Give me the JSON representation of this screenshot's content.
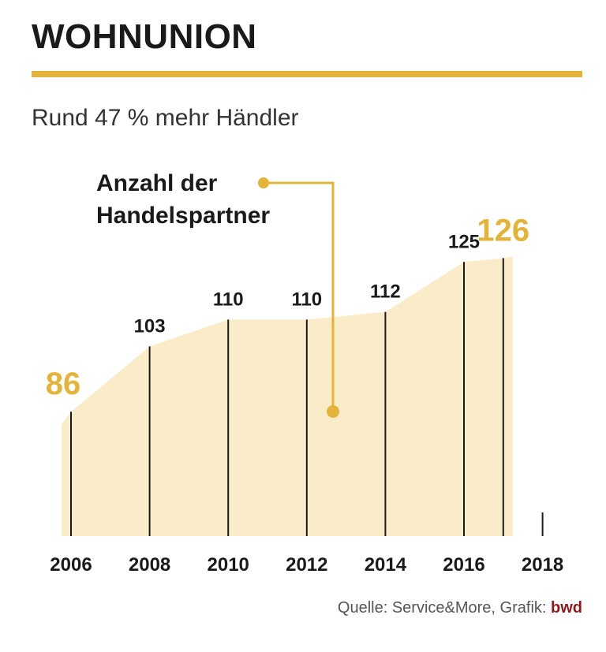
{
  "header": {
    "title": "WOHNUNION",
    "subtitle": "Rund 47 % mehr Händler"
  },
  "source": {
    "prefix": "Quelle: Service&More, Grafik: ",
    "brand": "bwd"
  },
  "colors": {
    "accent": "#e3b43c",
    "area_fill": "#fbecc9",
    "line": "#1a1a1a",
    "brand": "#8c1c1c"
  },
  "chart_data": {
    "type": "area",
    "annotation": "Anzahl der\nHandelspartner",
    "x_ticks": [
      2006,
      2008,
      2010,
      2012,
      2014,
      2016,
      2018
    ],
    "points": [
      {
        "x": 2006,
        "y": 86,
        "label": "86",
        "highlight": true
      },
      {
        "x": 2008,
        "y": 103,
        "label": "103",
        "highlight": false
      },
      {
        "x": 2010,
        "y": 110,
        "label": "110",
        "highlight": false
      },
      {
        "x": 2012,
        "y": 110,
        "label": "110",
        "highlight": false
      },
      {
        "x": 2014,
        "y": 112,
        "label": "112",
        "highlight": false
      },
      {
        "x": 2016,
        "y": 125,
        "label": "125",
        "highlight": false
      },
      {
        "x": 2017,
        "y": 126,
        "label": "126",
        "highlight": true
      }
    ],
    "grid": false,
    "legend": "none"
  }
}
